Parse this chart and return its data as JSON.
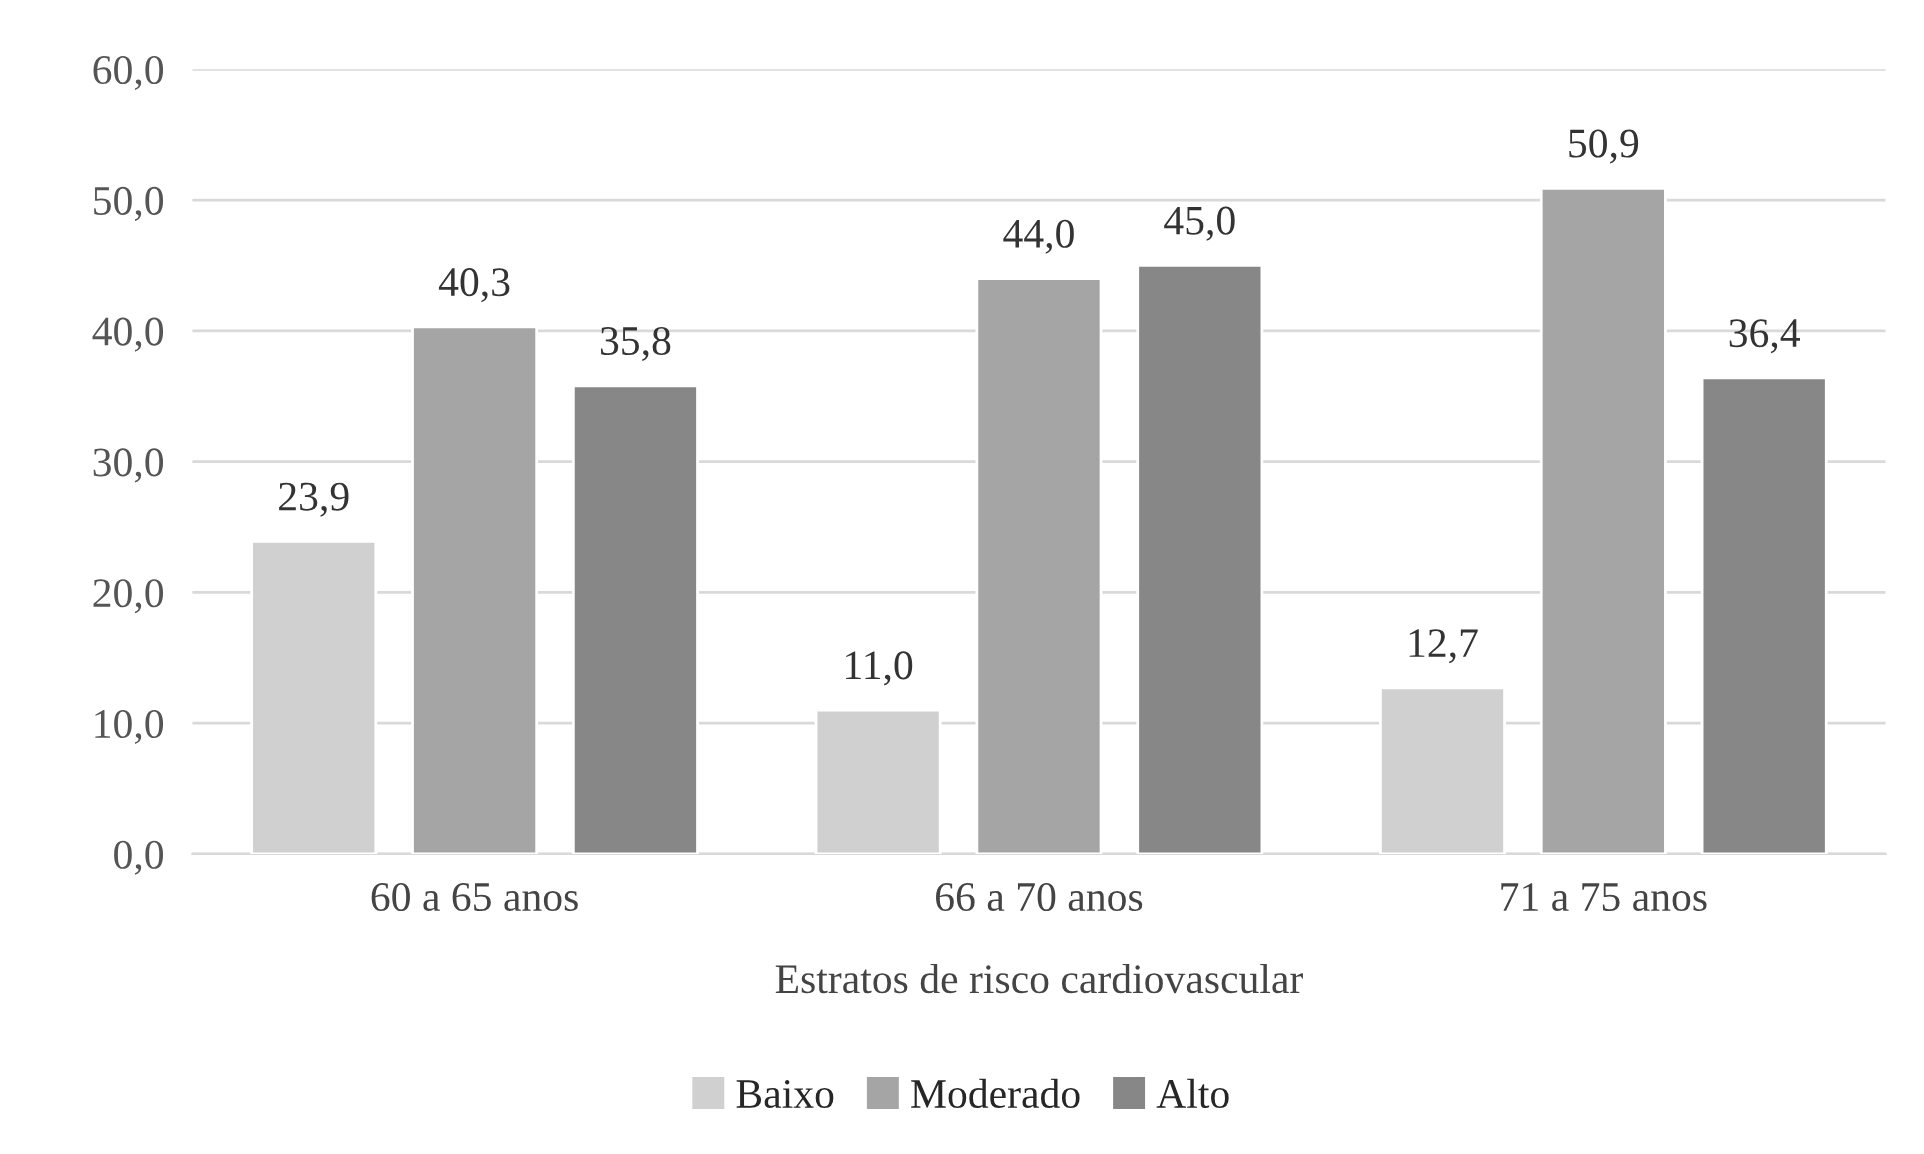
{
  "chart_data": {
    "type": "bar",
    "xlabel": "Estratos de risco cardiovascular",
    "categories": [
      "60 a 65 anos",
      "66 a 70 anos",
      "71 a 75 anos"
    ],
    "series": [
      {
        "name": "Baixo",
        "color": "#d0d0d0",
        "values": [
          23.9,
          11.0,
          12.7
        ],
        "value_labels": [
          "23,9",
          "11,0",
          "12,7"
        ]
      },
      {
        "name": "Moderado",
        "color": "#a5a5a5",
        "values": [
          40.3,
          44.0,
          50.9
        ],
        "value_labels": [
          "40,3",
          "44,0",
          "50,9"
        ]
      },
      {
        "name": "Alto",
        "color": "#878787",
        "values": [
          35.8,
          45.0,
          36.4
        ],
        "value_labels": [
          "35,8",
          "45,0",
          "36,4"
        ]
      }
    ],
    "ylim": [
      0,
      60
    ],
    "yticks": [
      {
        "value": 0,
        "label": "0,0"
      },
      {
        "value": 10,
        "label": "10,0"
      },
      {
        "value": 20,
        "label": "20,0"
      },
      {
        "value": 30,
        "label": "30,0"
      },
      {
        "value": 40,
        "label": "40,0"
      },
      {
        "value": 50,
        "label": "50,0"
      },
      {
        "value": 60,
        "label": "60,0"
      }
    ],
    "grid": "y",
    "legend": "bottom"
  }
}
